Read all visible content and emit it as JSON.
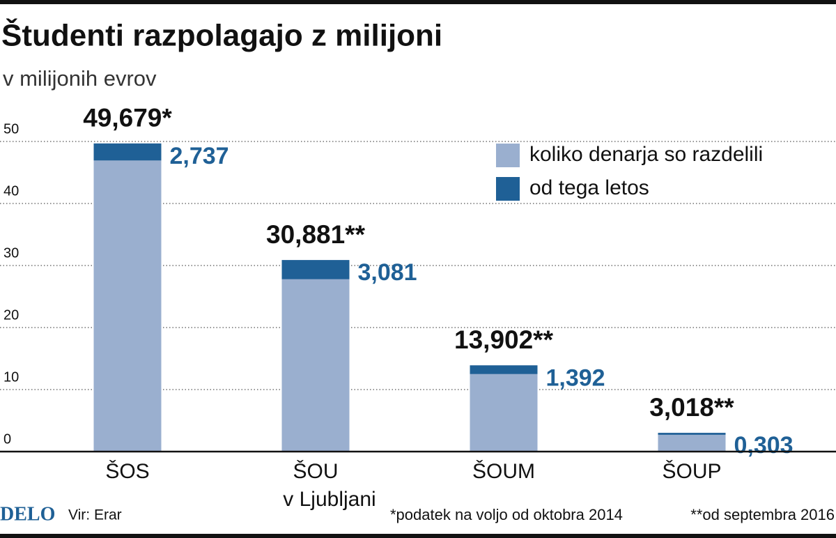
{
  "chart_data": {
    "type": "bar",
    "title": "Študenti razpolagajo z milijoni",
    "subtitle": "v milijonih evrov",
    "categories": [
      [
        "ŠOS"
      ],
      [
        "ŠOU",
        "v Ljubljani"
      ],
      [
        "ŠOUM"
      ],
      [
        "ŠOUP"
      ]
    ],
    "series": [
      {
        "name": "koliko denarja so razdelili",
        "color": "#9aafcf",
        "values": [
          49.679,
          30.881,
          13.902,
          3.018
        ],
        "value_labels": [
          "49,679*",
          "30,881**",
          "13,902**",
          "3,018**"
        ]
      },
      {
        "name": "od tega letos",
        "color": "#1f6096",
        "values": [
          2.737,
          3.081,
          1.392,
          0.303
        ],
        "value_labels": [
          "2,737",
          "3,081",
          "1,392",
          "0,303"
        ]
      }
    ],
    "ylim": [
      0,
      50
    ],
    "yticks": [
      0,
      10,
      20,
      30,
      40,
      50
    ],
    "grid": true,
    "legend": "top-right",
    "source_brand": "DELO",
    "source": "Vir: Erar",
    "notes": [
      "*podatek na voljo od oktobra 2014",
      "**od septembra 2016"
    ]
  }
}
